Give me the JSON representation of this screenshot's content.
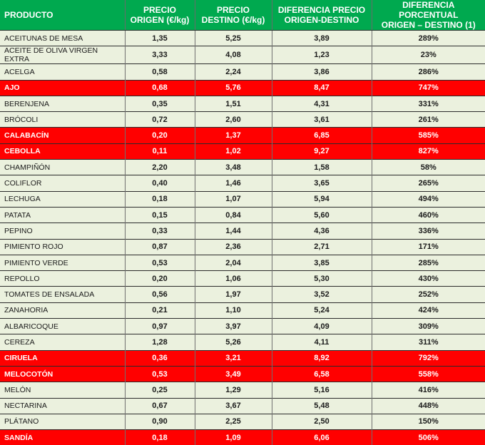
{
  "colors": {
    "header_bg": "#00a94f",
    "row_bg": "#ebf1de",
    "highlight_bg": "#ff0000",
    "highlight_text": "#ffffff"
  },
  "table": {
    "headers": [
      "PRODUCTO",
      "PRECIO ORIGEN (€/kg)",
      "PRECIO DESTINO (€/kg)",
      "DIFERENCIA PRECIO ORIGEN-DESTINO",
      "DIFERENCIA PORCENTUAL ORIGEN – DESTINO (1)"
    ],
    "header_lines": [
      [
        "PRODUCTO"
      ],
      [
        "PRECIO",
        "ORIGEN (€/kg)"
      ],
      [
        "PRECIO",
        "DESTINO (€/kg)"
      ],
      [
        "DIFERENCIA PRECIO",
        "ORIGEN-DESTINO"
      ],
      [
        "DIFERENCIA PORCENTUAL",
        "ORIGEN – DESTINO (1)"
      ]
    ],
    "rows": [
      {
        "producto": "ACEITUNAS DE MESA",
        "origen": "1,35",
        "destino": "5,25",
        "diferencia": "3,89",
        "porcentaje": "289%",
        "highlight": false
      },
      {
        "producto": "ACEITE DE OLIVA VIRGEN EXTRA",
        "origen": "3,33",
        "destino": "4,08",
        "diferencia": "1,23",
        "porcentaje": "23%",
        "highlight": false
      },
      {
        "producto": "ACELGA",
        "origen": "0,58",
        "destino": "2,24",
        "diferencia": "3,86",
        "porcentaje": "286%",
        "highlight": false
      },
      {
        "producto": "AJO",
        "origen": "0,68",
        "destino": "5,76",
        "diferencia": "8,47",
        "porcentaje": "747%",
        "highlight": true
      },
      {
        "producto": "BERENJENA",
        "origen": "0,35",
        "destino": "1,51",
        "diferencia": "4,31",
        "porcentaje": "331%",
        "highlight": false
      },
      {
        "producto": "BRÓCOLI",
        "origen": "0,72",
        "destino": "2,60",
        "diferencia": "3,61",
        "porcentaje": "261%",
        "highlight": false
      },
      {
        "producto": "CALABACÍN",
        "origen": "0,20",
        "destino": "1,37",
        "diferencia": "6,85",
        "porcentaje": "585%",
        "highlight": true
      },
      {
        "producto": "CEBOLLA",
        "origen": "0,11",
        "destino": "1,02",
        "diferencia": "9,27",
        "porcentaje": "827%",
        "highlight": true
      },
      {
        "producto": "CHAMPIÑÓN",
        "origen": "2,20",
        "destino": "3,48",
        "diferencia": "1,58",
        "porcentaje": "58%",
        "highlight": false
      },
      {
        "producto": "COLIFLOR",
        "origen": "0,40",
        "destino": "1,46",
        "diferencia": "3,65",
        "porcentaje": "265%",
        "highlight": false
      },
      {
        "producto": "LECHUGA",
        "origen": "0,18",
        "destino": "1,07",
        "diferencia": "5,94",
        "porcentaje": "494%",
        "highlight": false
      },
      {
        "producto": "PATATA",
        "origen": "0,15",
        "destino": "0,84",
        "diferencia": "5,60",
        "porcentaje": "460%",
        "highlight": false
      },
      {
        "producto": "PEPINO",
        "origen": "0,33",
        "destino": "1,44",
        "diferencia": "4,36",
        "porcentaje": "336%",
        "highlight": false
      },
      {
        "producto": "PIMIENTO ROJO",
        "origen": "0,87",
        "destino": "2,36",
        "diferencia": "2,71",
        "porcentaje": "171%",
        "highlight": false
      },
      {
        "producto": "PIMIENTO VERDE",
        "origen": "0,53",
        "destino": "2,04",
        "diferencia": "3,85",
        "porcentaje": "285%",
        "highlight": false
      },
      {
        "producto": "REPOLLO",
        "origen": "0,20",
        "destino": "1,06",
        "diferencia": "5,30",
        "porcentaje": "430%",
        "highlight": false
      },
      {
        "producto": "TOMATES DE ENSALADA",
        "origen": "0,56",
        "destino": "1,97",
        "diferencia": "3,52",
        "porcentaje": "252%",
        "highlight": false
      },
      {
        "producto": "ZANAHORIA",
        "origen": "0,21",
        "destino": "1,10",
        "diferencia": "5,24",
        "porcentaje": "424%",
        "highlight": false
      },
      {
        "producto": "ALBARICOQUE",
        "origen": "0,97",
        "destino": "3,97",
        "diferencia": "4,09",
        "porcentaje": "309%",
        "highlight": false
      },
      {
        "producto": "CEREZA",
        "origen": "1,28",
        "destino": "5,26",
        "diferencia": "4,11",
        "porcentaje": "311%",
        "highlight": false
      },
      {
        "producto": "CIRUELA",
        "origen": "0,36",
        "destino": "3,21",
        "diferencia": "8,92",
        "porcentaje": "792%",
        "highlight": true
      },
      {
        "producto": "MELOCOTÓN",
        "origen": "0,53",
        "destino": "3,49",
        "diferencia": "6,58",
        "porcentaje": "558%",
        "highlight": true
      },
      {
        "producto": "MELÓN",
        "origen": "0,25",
        "destino": "1,29",
        "diferencia": "5,16",
        "porcentaje": "416%",
        "highlight": false
      },
      {
        "producto": "NECTARINA",
        "origen": "0,67",
        "destino": "3,67",
        "diferencia": "5,48",
        "porcentaje": "448%",
        "highlight": false
      },
      {
        "producto": "PLÁTANO",
        "origen": "0,90",
        "destino": "2,25",
        "diferencia": "2,50",
        "porcentaje": "150%",
        "highlight": false
      },
      {
        "producto": "SANDÍA",
        "origen": "0,18",
        "destino": "1,09",
        "diferencia": "6,06",
        "porcentaje": "506%",
        "highlight": true
      }
    ]
  }
}
